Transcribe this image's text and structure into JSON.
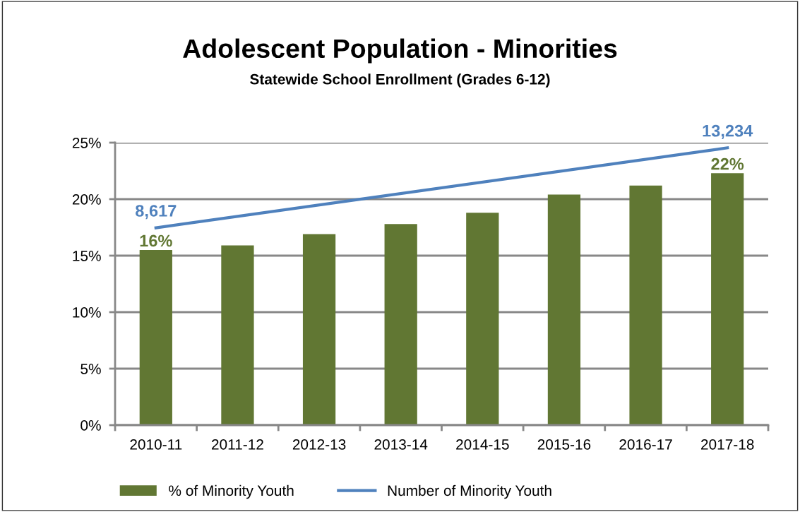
{
  "chart_data": {
    "type": "bar",
    "title": "Adolescent Population - Minorities",
    "subtitle": "Statewide School Enrollment (Grades 6-12)",
    "categories": [
      "2010-11",
      "2011-12",
      "2012-13",
      "2013-14",
      "2014-15",
      "2015-16",
      "2016-17",
      "2017-18"
    ],
    "series": [
      {
        "name": "% of Minority Youth",
        "color": "#617733",
        "values": [
          15.5,
          15.9,
          16.9,
          17.8,
          18.8,
          20.4,
          21.2,
          22.3
        ],
        "value_labels": [
          "16%",
          null,
          null,
          null,
          null,
          null,
          null,
          "22%"
        ]
      },
      {
        "name": "Number of Minority Youth",
        "type": "line",
        "axis": "y2",
        "color": "#4f81bd",
        "values": [
          8617,
          null,
          null,
          null,
          null,
          null,
          null,
          13234
        ],
        "value_labels": [
          "8,617",
          null,
          null,
          null,
          null,
          null,
          null,
          "13,234"
        ]
      }
    ],
    "ylim": [
      0,
      25
    ],
    "yticks": [
      {
        "value": 0,
        "label": "0%"
      },
      {
        "value": 5,
        "label": "5%"
      },
      {
        "value": 10,
        "label": "10%"
      },
      {
        "value": 15,
        "label": "15%"
      },
      {
        "value": 20,
        "label": "20%"
      },
      {
        "value": 25,
        "label": "25%"
      }
    ],
    "y2lim": [
      -2769,
      13533
    ],
    "tick_labels": "xy",
    "grid": "y",
    "legend": "bottom",
    "marker": "none",
    "line_style": "solid"
  }
}
